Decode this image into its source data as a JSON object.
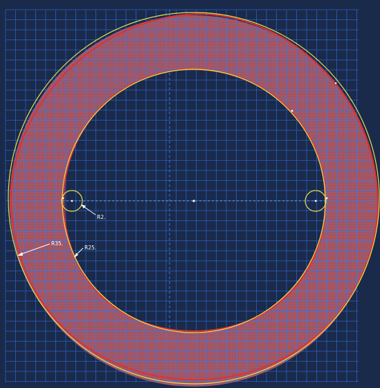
{
  "colors": {
    "canvas_background": "#1a2a4a",
    "grid_minor": "#2a5fc4",
    "grid_major": "#3a78e0",
    "region_fill": "#c45a5a",
    "region_edge": "#e03030",
    "sketch_geometry": "#e8e04a",
    "centerline": "#6fb8ff",
    "dimension_text": "#ffffff",
    "vertex_point": "#ffffff"
  },
  "dimensions": {
    "outer_radius_label": "R35.",
    "inner_radius_label": "R25.",
    "small_circle_label": "R2."
  }
}
